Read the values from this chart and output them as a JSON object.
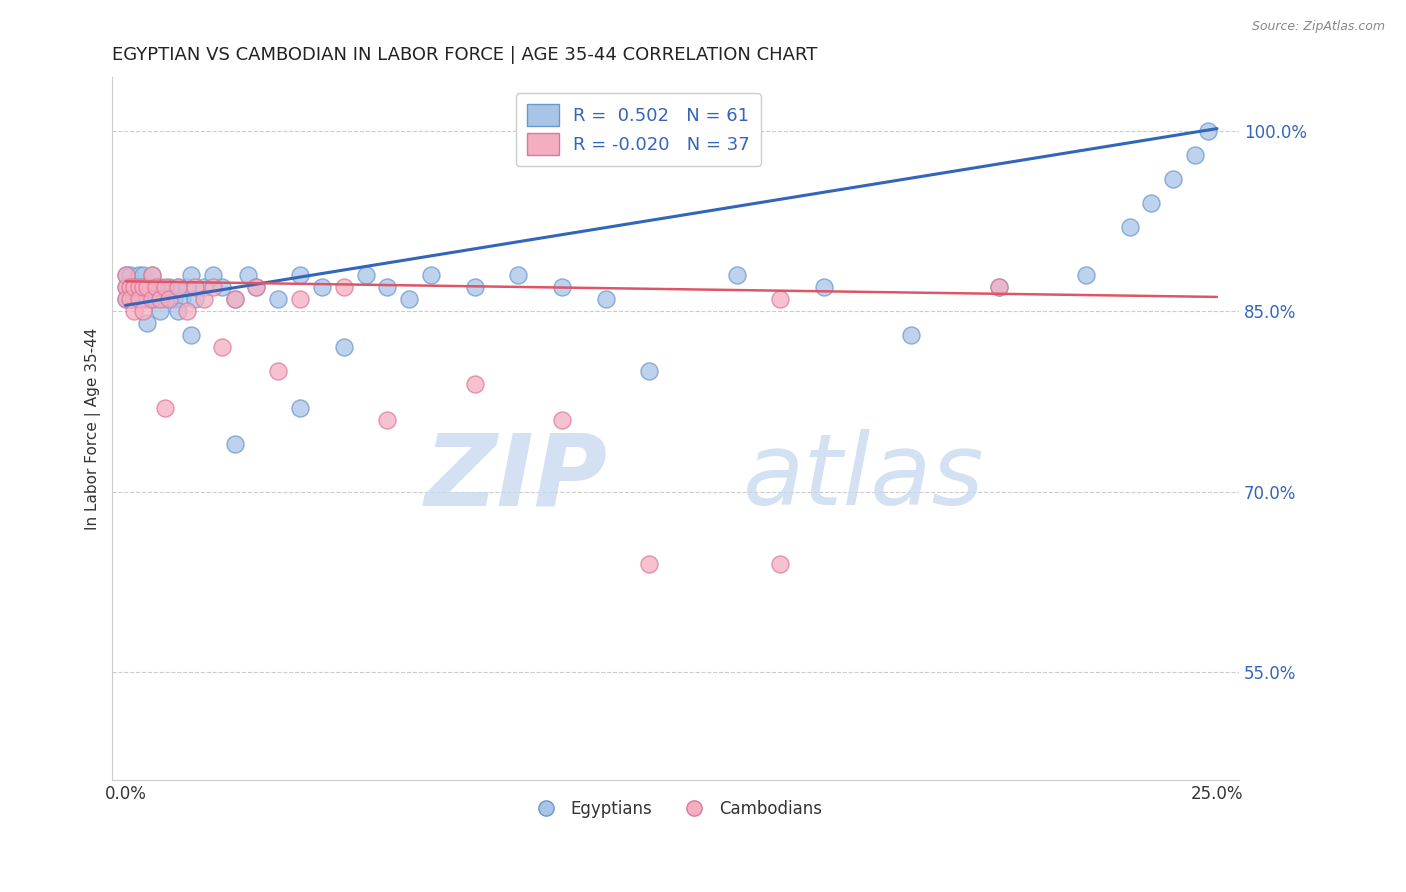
{
  "title": "EGYPTIAN VS CAMBODIAN IN LABOR FORCE | AGE 35-44 CORRELATION CHART",
  "source": "Source: ZipAtlas.com",
  "ylabel": "In Labor Force | Age 35-44",
  "xlim": [
    -0.003,
    0.255
  ],
  "ylim": [
    0.46,
    1.045
  ],
  "ytick_vals": [
    0.55,
    0.7,
    0.85,
    1.0
  ],
  "ytick_labels": [
    "55.0%",
    "70.0%",
    "85.0%",
    "100.0%"
  ],
  "xtick_vals": [
    0.0,
    0.05,
    0.1,
    0.15,
    0.2,
    0.25
  ],
  "xtick_labels": [
    "0.0%",
    "",
    "",
    "",
    "",
    "25.0%"
  ],
  "legend_R_blue": "0.502",
  "legend_N_blue": "61",
  "legend_R_pink": "-0.020",
  "legend_N_pink": "37",
  "blue_fill": "#aac4e8",
  "blue_edge": "#6699cc",
  "pink_fill": "#f5aec0",
  "pink_edge": "#dd7799",
  "line_blue": "#3366bb",
  "line_pink": "#dd5566",
  "grid_color": "#cccccc",
  "blue_x": [
    0.0,
    0.0,
    0.0,
    0.001,
    0.001,
    0.001,
    0.002,
    0.002,
    0.003,
    0.003,
    0.004,
    0.004,
    0.005,
    0.005,
    0.006,
    0.007,
    0.007,
    0.008,
    0.009,
    0.01,
    0.011,
    0.012,
    0.013,
    0.014,
    0.015,
    0.016,
    0.018,
    0.02,
    0.022,
    0.025,
    0.028,
    0.03,
    0.035,
    0.04,
    0.045,
    0.05,
    0.055,
    0.06,
    0.065,
    0.07,
    0.08,
    0.09,
    0.1,
    0.11,
    0.12,
    0.14,
    0.16,
    0.18,
    0.2,
    0.22,
    0.23,
    0.235,
    0.24,
    0.245,
    0.248,
    0.005,
    0.008,
    0.012,
    0.015,
    0.025,
    0.04
  ],
  "blue_y": [
    0.88,
    0.86,
    0.87,
    0.87,
    0.86,
    0.88,
    0.87,
    0.86,
    0.88,
    0.87,
    0.86,
    0.88,
    0.87,
    0.86,
    0.88,
    0.87,
    0.86,
    0.87,
    0.86,
    0.87,
    0.86,
    0.87,
    0.86,
    0.87,
    0.88,
    0.86,
    0.87,
    0.88,
    0.87,
    0.86,
    0.88,
    0.87,
    0.86,
    0.88,
    0.87,
    0.82,
    0.88,
    0.87,
    0.86,
    0.88,
    0.87,
    0.88,
    0.87,
    0.86,
    0.8,
    0.88,
    0.87,
    0.83,
    0.87,
    0.88,
    0.92,
    0.94,
    0.96,
    0.98,
    1.0,
    0.84,
    0.85,
    0.85,
    0.83,
    0.74,
    0.77
  ],
  "pink_x": [
    0.0,
    0.0,
    0.0,
    0.001,
    0.001,
    0.002,
    0.002,
    0.003,
    0.003,
    0.004,
    0.004,
    0.005,
    0.006,
    0.006,
    0.007,
    0.008,
    0.009,
    0.01,
    0.012,
    0.014,
    0.016,
    0.018,
    0.02,
    0.025,
    0.03,
    0.04,
    0.05,
    0.06,
    0.08,
    0.1,
    0.12,
    0.15,
    0.2,
    0.022,
    0.009,
    0.035,
    0.15
  ],
  "pink_y": [
    0.87,
    0.86,
    0.88,
    0.87,
    0.86,
    0.87,
    0.85,
    0.87,
    0.86,
    0.87,
    0.85,
    0.87,
    0.88,
    0.86,
    0.87,
    0.86,
    0.87,
    0.86,
    0.87,
    0.85,
    0.87,
    0.86,
    0.87,
    0.86,
    0.87,
    0.86,
    0.87,
    0.76,
    0.79,
    0.76,
    0.64,
    0.86,
    0.87,
    0.82,
    0.77,
    0.8,
    0.64
  ],
  "blue_line_x": [
    0.0,
    0.25
  ],
  "blue_line_y": [
    0.855,
    1.002
  ],
  "pink_line_x": [
    0.0,
    0.25
  ],
  "pink_line_y": [
    0.875,
    0.862
  ]
}
